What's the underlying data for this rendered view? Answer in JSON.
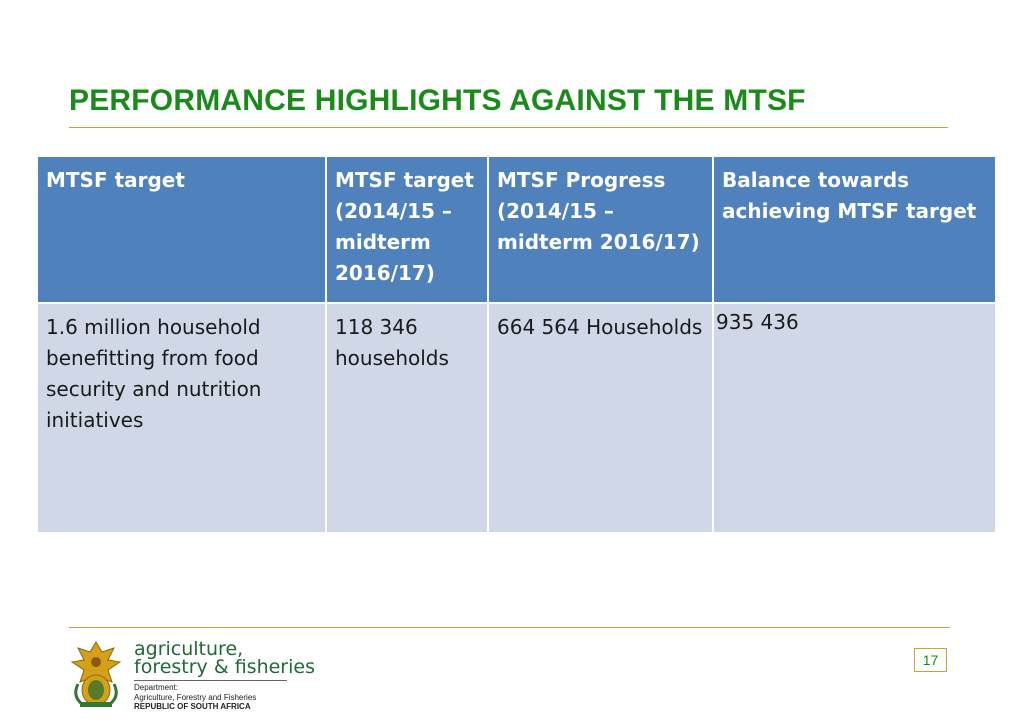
{
  "slide": {
    "title": "PERFORMANCE HIGHLIGHTS AGAINST THE MTSF",
    "page_number": "17"
  },
  "table": {
    "headers": [
      "MTSF target",
      "MTSF target (2014/15 – midterm 2016/17)",
      "MTSF Progress (2014/15 – midterm 2016/17)",
      "Balance towards achieving MTSF target"
    ],
    "rows": [
      [
        "1.6 million household benefitting from food security and nutrition initiatives",
        "118 346 households",
        "664 564 Households",
        "935 436"
      ]
    ]
  },
  "footer": {
    "brand_line1": "agriculture,",
    "brand_line2": "forestry & fisheries",
    "dept_line1": "Department:",
    "dept_line2": "Agriculture, Forestry and Fisheries",
    "dept_line3": "REPUBLIC OF SOUTH AFRICA"
  },
  "colors": {
    "title_green": "#1a8a1a",
    "header_blue": "#4f81bd",
    "cell_light_blue": "#d0d8e8",
    "gold_rule": "#c9a437",
    "brand_green": "#1f6a38"
  }
}
